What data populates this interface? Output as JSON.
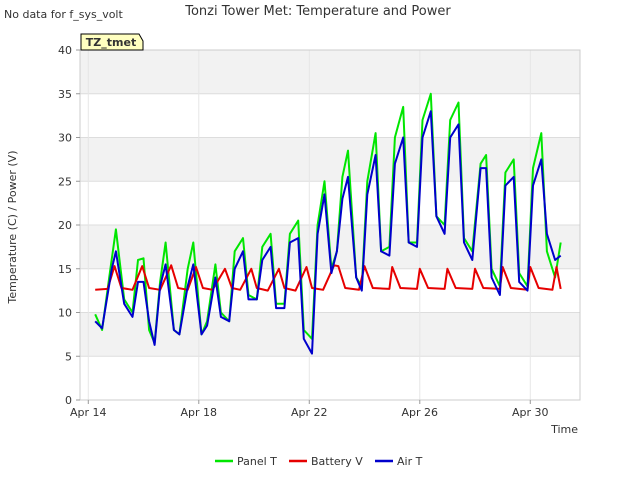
{
  "chart_data": {
    "type": "line",
    "title": "Tonzi Tower Met: Temperature and Power",
    "no_data_note": "No data for f_sys_volt",
    "site_tag": "TZ_tmet",
    "xlabel": "Time",
    "ylabel": "Temperature (C) / Power (V)",
    "xlim": [
      13.7,
      31.8
    ],
    "ylim": [
      0,
      40
    ],
    "y_ticks": [
      0,
      5,
      10,
      15,
      20,
      25,
      30,
      35,
      40
    ],
    "y_tick_labels": [
      "0",
      "5",
      "10",
      "15",
      "20",
      "25",
      "30",
      "35",
      "40"
    ],
    "x_ticks": [
      14,
      18,
      22,
      26,
      30
    ],
    "x_tick_labels": [
      "Apr 14",
      "Apr 18",
      "Apr 22",
      "Apr 26",
      "Apr 30"
    ],
    "grid": true,
    "legend_position": "bottom",
    "colors": {
      "Panel T": "#00e600",
      "Battery V": "#e60000",
      "Air T": "#0000cc"
    },
    "series": [
      {
        "name": "Panel T",
        "x": [
          14.25,
          14.5,
          14.8,
          15.0,
          15.3,
          15.6,
          15.8,
          16.0,
          16.2,
          16.4,
          16.6,
          16.8,
          17.1,
          17.3,
          17.6,
          17.8,
          18.1,
          18.3,
          18.6,
          18.8,
          19.1,
          19.3,
          19.6,
          19.8,
          20.1,
          20.3,
          20.6,
          20.8,
          21.1,
          21.3,
          21.6,
          21.8,
          22.1,
          22.3,
          22.55,
          22.8,
          23.0,
          23.2,
          23.4,
          23.7,
          23.9,
          24.1,
          24.4,
          24.6,
          24.9,
          25.1,
          25.4,
          25.6,
          25.9,
          26.1,
          26.4,
          26.6,
          26.9,
          27.1,
          27.4,
          27.6,
          27.9,
          28.2,
          28.4,
          28.6,
          28.9,
          29.1,
          29.4,
          29.6,
          29.9,
          30.1,
          30.4,
          30.6,
          30.9,
          31.1
        ],
        "y": [
          9.8,
          8.0,
          15.0,
          19.5,
          11.5,
          10.0,
          16.0,
          16.2,
          8.0,
          6.5,
          13.5,
          18.0,
          8.0,
          7.5,
          15.0,
          18.0,
          7.5,
          9.0,
          15.5,
          10.0,
          9.0,
          17.0,
          18.5,
          12.0,
          11.5,
          17.5,
          19.0,
          11.0,
          11.0,
          19.0,
          20.5,
          8.0,
          7.0,
          20.0,
          25.0,
          15.0,
          17.0,
          25.5,
          28.5,
          14.0,
          13.0,
          25.0,
          30.5,
          17.0,
          17.5,
          30.0,
          33.5,
          18.0,
          18.0,
          32.0,
          35.0,
          21.0,
          20.0,
          32.0,
          34.0,
          18.5,
          17.0,
          27.0,
          28.0,
          15.0,
          13.0,
          26.0,
          27.5,
          14.5,
          13.0,
          26.5,
          30.5,
          17.0,
          14.0,
          18.0
        ]
      },
      {
        "name": "Battery V",
        "x": [
          14.25,
          14.7,
          14.95,
          15.2,
          15.6,
          15.95,
          16.2,
          16.6,
          17.0,
          17.25,
          17.6,
          17.9,
          18.15,
          18.5,
          18.95,
          19.2,
          19.5,
          19.9,
          20.1,
          20.5,
          20.9,
          21.1,
          21.5,
          21.9,
          22.1,
          22.5,
          22.9,
          23.05,
          23.3,
          23.8,
          24.0,
          24.3,
          24.9,
          25.0,
          25.3,
          25.9,
          26.0,
          26.3,
          26.9,
          27.0,
          27.3,
          27.9,
          28.0,
          28.3,
          28.9,
          29.0,
          29.3,
          29.9,
          30.0,
          30.3,
          30.8,
          30.95,
          31.1
        ],
        "y": [
          12.6,
          12.7,
          15.3,
          12.8,
          12.6,
          15.3,
          12.8,
          12.6,
          15.4,
          12.8,
          12.6,
          15.2,
          12.8,
          12.6,
          15.0,
          12.8,
          12.6,
          15.0,
          12.8,
          12.5,
          15.0,
          12.8,
          12.5,
          15.2,
          12.8,
          12.6,
          15.4,
          15.3,
          12.8,
          12.6,
          15.3,
          12.8,
          12.7,
          15.2,
          12.8,
          12.7,
          15.0,
          12.8,
          12.7,
          15.0,
          12.8,
          12.7,
          15.0,
          12.8,
          12.7,
          15.2,
          12.8,
          12.6,
          15.2,
          12.8,
          12.6,
          15.2,
          12.7
        ]
      },
      {
        "name": "Air T",
        "x": [
          14.25,
          14.5,
          14.85,
          15.0,
          15.3,
          15.6,
          15.8,
          16.0,
          16.2,
          16.4,
          16.6,
          16.8,
          17.1,
          17.3,
          17.6,
          17.8,
          18.1,
          18.3,
          18.6,
          18.8,
          19.1,
          19.3,
          19.6,
          19.8,
          20.1,
          20.3,
          20.6,
          20.8,
          21.1,
          21.3,
          21.6,
          21.8,
          22.1,
          22.3,
          22.55,
          22.8,
          23.0,
          23.2,
          23.4,
          23.7,
          23.9,
          24.1,
          24.4,
          24.6,
          24.9,
          25.1,
          25.4,
          25.6,
          25.9,
          26.1,
          26.4,
          26.6,
          26.9,
          27.1,
          27.4,
          27.6,
          27.9,
          28.2,
          28.4,
          28.6,
          28.9,
          29.1,
          29.4,
          29.6,
          29.9,
          30.1,
          30.4,
          30.6,
          30.9,
          31.1
        ],
        "y": [
          9.0,
          8.2,
          15.0,
          17.0,
          11.0,
          9.5,
          13.5,
          13.5,
          9.0,
          6.3,
          13.0,
          15.5,
          8.0,
          7.5,
          13.0,
          15.5,
          7.5,
          8.5,
          14.0,
          9.5,
          9.0,
          15.0,
          17.0,
          11.5,
          11.5,
          16.0,
          17.5,
          10.5,
          10.5,
          18.0,
          18.5,
          7.0,
          5.3,
          19.0,
          23.5,
          14.5,
          17.0,
          23.0,
          25.5,
          14.0,
          12.5,
          23.5,
          28.0,
          17.0,
          16.5,
          27.0,
          30.0,
          18.0,
          17.5,
          30.0,
          33.0,
          21.0,
          19.0,
          30.0,
          31.5,
          18.0,
          16.0,
          26.5,
          26.5,
          14.0,
          12.0,
          24.5,
          25.5,
          13.5,
          12.5,
          24.5,
          27.5,
          19.0,
          16.0,
          16.5
        ]
      }
    ]
  }
}
